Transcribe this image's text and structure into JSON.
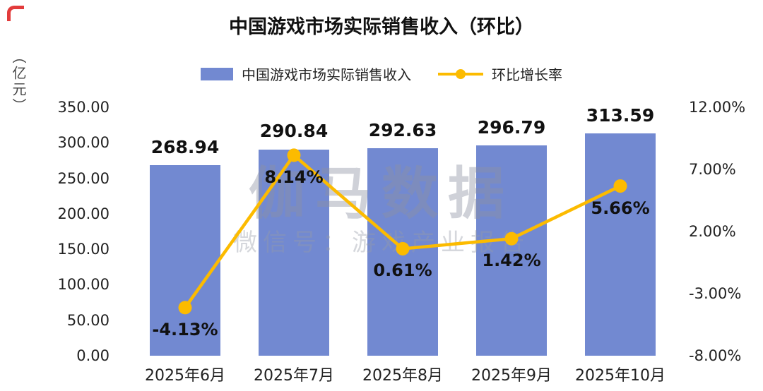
{
  "title": "中国游戏市场实际销售收入（环比）",
  "axis_unit": "（亿元）",
  "legend": [
    {
      "label": "中国游戏市场实际销售收入",
      "type": "bar",
      "color": "#7289D1"
    },
    {
      "label": "环比增长率",
      "type": "line",
      "color": "#FCBB00"
    }
  ],
  "watermark": {
    "line1": "伽马数据",
    "line2": "微信号：游戏产业报告"
  },
  "decorations": {
    "corner_color": "#E23B3B"
  },
  "chart_data": {
    "type": "bar+line",
    "title": "中国游戏市场实际销售收入（环比）",
    "categories": [
      "2025年6月",
      "2025年7月",
      "2025年8月",
      "2025年9月",
      "2025年10月"
    ],
    "series": [
      {
        "name": "中国游戏市场实际销售收入",
        "type": "bar",
        "axis": "left",
        "unit": "亿元",
        "color": "#7289D1",
        "values": [
          268.94,
          290.84,
          292.63,
          296.79,
          313.59
        ],
        "labels": [
          "268.94",
          "290.84",
          "292.63",
          "296.79",
          "313.59"
        ]
      },
      {
        "name": "环比增长率",
        "type": "line",
        "axis": "right",
        "unit": "%",
        "color": "#FCBB00",
        "values": [
          -4.13,
          8.14,
          0.61,
          1.42,
          5.66
        ],
        "labels": [
          "-4.13%",
          "8.14%",
          "0.61%",
          "1.42%",
          "5.66%"
        ]
      }
    ],
    "left_axis": {
      "min": 0,
      "max": 350,
      "ticks": [
        "350.00",
        "300.00",
        "250.00",
        "200.00",
        "150.00",
        "100.00",
        "50.00",
        "0.00"
      ]
    },
    "right_axis": {
      "min": -8,
      "max": 12,
      "ticks": [
        "12.00%",
        "7.00%",
        "2.00%",
        "-3.00%",
        "-8.00%"
      ]
    },
    "grid": false,
    "legend_position": "top"
  }
}
